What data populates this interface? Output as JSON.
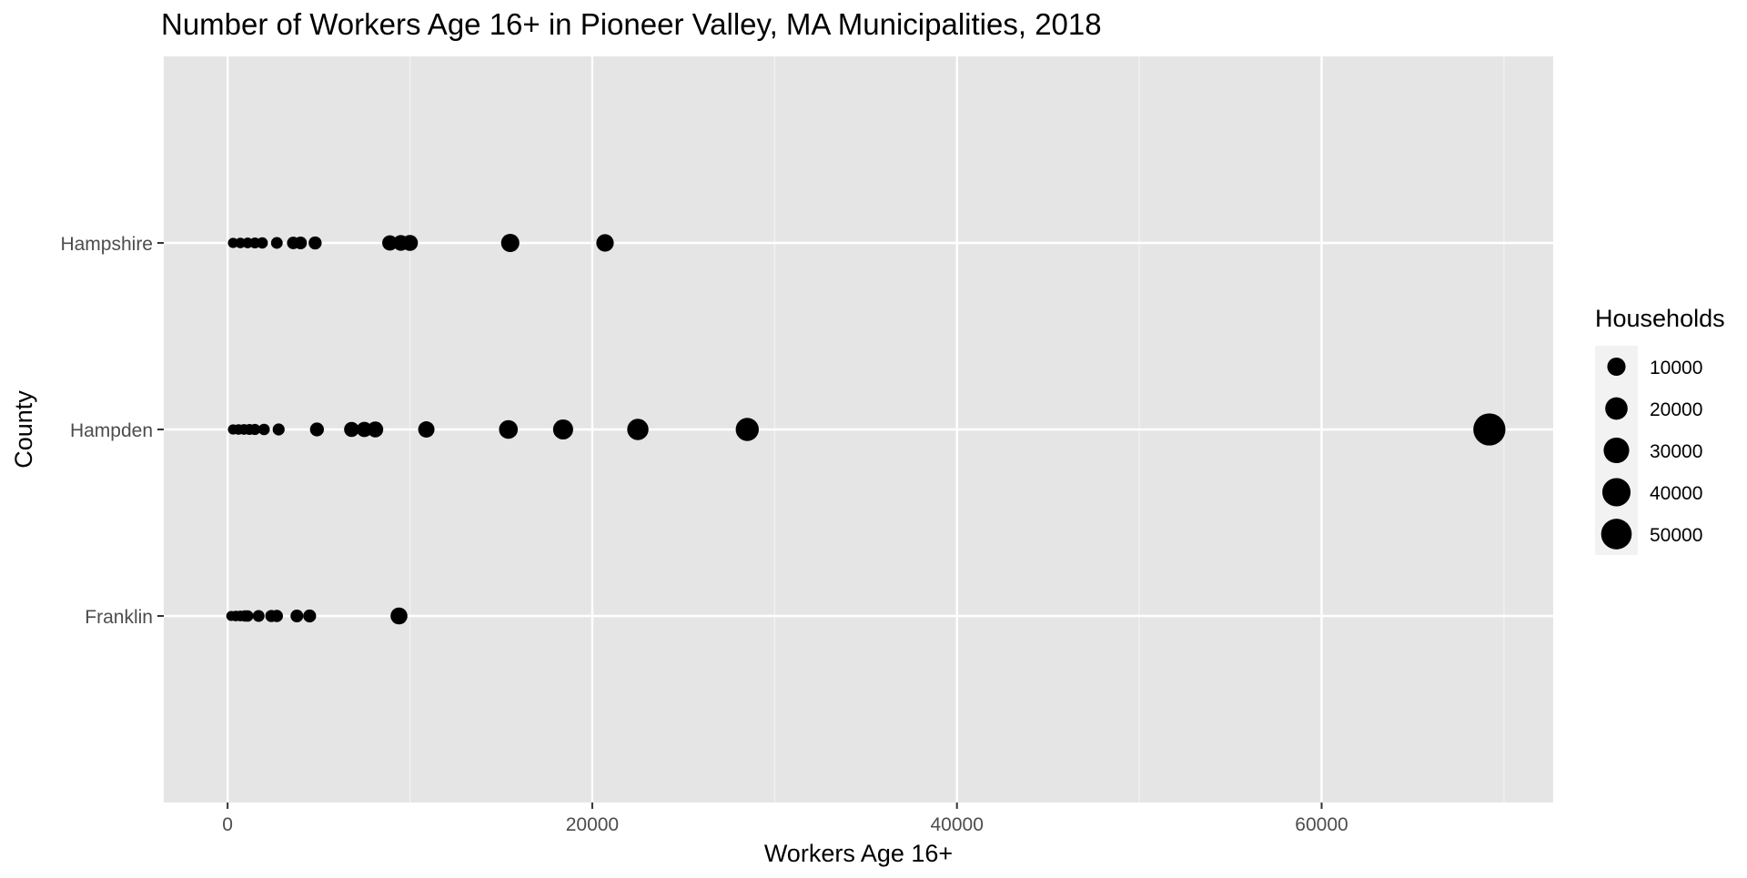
{
  "chart_data": {
    "type": "scatter",
    "title": "Number of Workers Age 16+ in Pioneer Valley, MA Municipalities, 2018",
    "xlabel": "Workers Age 16+",
    "ylabel": "County",
    "xlim": [
      -3500,
      72700
    ],
    "x_ticks": [
      0,
      20000,
      40000,
      60000
    ],
    "x_tick_labels": [
      "0",
      "20000",
      "40000",
      "60000"
    ],
    "categories": [
      "Franklin",
      "Hampden",
      "Hampshire"
    ],
    "grid": true,
    "legend": {
      "title": "Households",
      "position": "right",
      "breaks": [
        10000,
        20000,
        30000,
        40000,
        50000
      ],
      "labels": [
        "10000",
        "20000",
        "30000",
        "40000",
        "50000"
      ]
    },
    "size_range_households": [
      300,
      60000
    ],
    "series": [
      {
        "category": "Franklin",
        "points": [
          {
            "x": 200,
            "households": 300
          },
          {
            "x": 450,
            "households": 500
          },
          {
            "x": 700,
            "households": 600
          },
          {
            "x": 950,
            "households": 900
          },
          {
            "x": 1100,
            "households": 1000
          },
          {
            "x": 1700,
            "households": 1300
          },
          {
            "x": 2400,
            "households": 1500
          },
          {
            "x": 2700,
            "households": 1600
          },
          {
            "x": 3800,
            "households": 2000
          },
          {
            "x": 4500,
            "households": 2200
          },
          {
            "x": 9400,
            "households": 7500
          }
        ]
      },
      {
        "category": "Hampden",
        "points": [
          {
            "x": 300,
            "households": 400
          },
          {
            "x": 600,
            "households": 500
          },
          {
            "x": 900,
            "households": 600
          },
          {
            "x": 1200,
            "households": 700
          },
          {
            "x": 1500,
            "households": 800
          },
          {
            "x": 2000,
            "households": 1000
          },
          {
            "x": 2800,
            "households": 1400
          },
          {
            "x": 4900,
            "households": 3200
          },
          {
            "x": 6800,
            "households": 4500
          },
          {
            "x": 7500,
            "households": 5000
          },
          {
            "x": 8100,
            "households": 5800
          },
          {
            "x": 10900,
            "households": 6500
          },
          {
            "x": 15400,
            "households": 11000
          },
          {
            "x": 18400,
            "households": 14000
          },
          {
            "x": 22500,
            "households": 17000
          },
          {
            "x": 28500,
            "households": 22000
          },
          {
            "x": 69200,
            "households": 57000
          }
        ]
      },
      {
        "category": "Hampshire",
        "points": [
          {
            "x": 300,
            "households": 400
          },
          {
            "x": 700,
            "households": 500
          },
          {
            "x": 1100,
            "households": 600
          },
          {
            "x": 1500,
            "households": 700
          },
          {
            "x": 1900,
            "households": 900
          },
          {
            "x": 2700,
            "households": 1200
          },
          {
            "x": 3600,
            "households": 1800
          },
          {
            "x": 4000,
            "households": 2000
          },
          {
            "x": 4800,
            "households": 2300
          },
          {
            "x": 8900,
            "households": 5000
          },
          {
            "x": 9500,
            "households": 5500
          },
          {
            "x": 10000,
            "households": 6000
          },
          {
            "x": 15500,
            "households": 10000
          },
          {
            "x": 20700,
            "households": 8500
          }
        ]
      }
    ]
  }
}
